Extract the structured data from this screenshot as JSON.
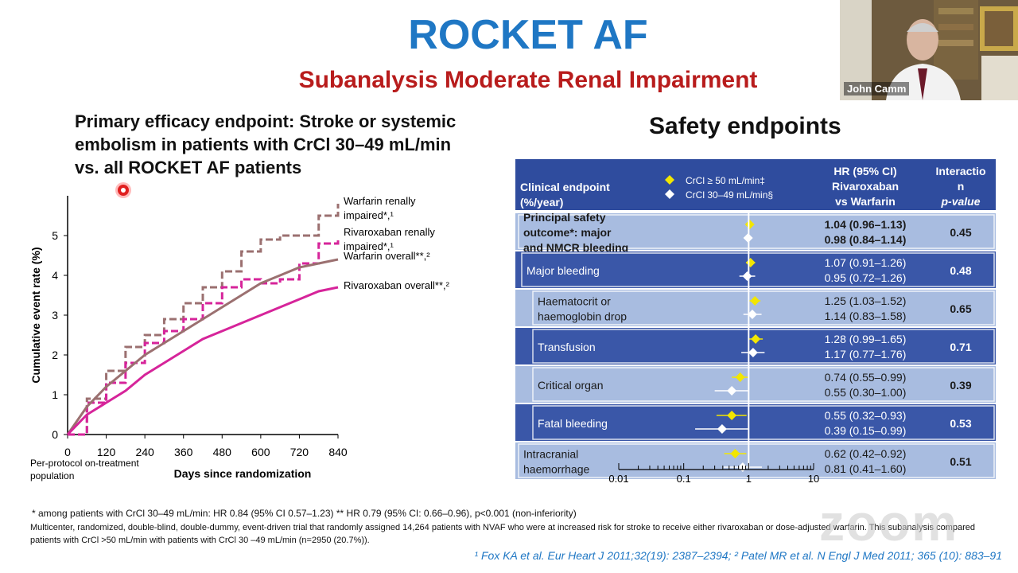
{
  "slide": {
    "title": "ROCKET AF",
    "subtitle": "Subanalysis Moderate Renal Impairment",
    "left_heading": "Primary efficacy endpoint: Stroke or systemic embolism in patients with CrCl 30–49 mL/min vs. all ROCKET AF patients",
    "right_heading": "Safety endpoints",
    "footnote1": "* among patients with CrCl 30–49 mL/min: HR 0.84 (95% CI 0.57–1.23) ** HR 0.79 (95% CI: 0.66–0.96),  p<0.001 (non-inferiority)",
    "footnote2": "Multicenter, randomized, double-blind, double-dummy, event-driven trial that randomly assigned 14,264 patients with NVAF who were at increased risk for stroke to receive either rivaroxaban or dose-adjusted warfarin. This subanalysis compared patients with CrCl >50 mL/min with patients with CrCl 30 –49 mL/min (n=2950 (20.7%)).",
    "references": "¹ Fox KA et al. Eur Heart J 2011;32(19): 2387–2394; ² Patel MR et al. N Engl J Med 2011; 365 (10): 883–91",
    "population_note": "Per-protocol on-treatment population"
  },
  "video_tile": {
    "participant_name": "John Camm",
    "logo_text": "zoom"
  },
  "colors": {
    "title": "#1f77c4",
    "subtitle": "#b81c1c",
    "table_dark": "#3a57a8",
    "table_light": "#a8bce0",
    "table_header": "#2f4c9e",
    "warfarin": "#9b7070",
    "rivaroxaban": "#d6249a",
    "marker_yellow": "#f2e600"
  },
  "chart_data": [
    {
      "type": "line",
      "xlabel": "Days since randomization",
      "ylabel": "Cumulative event rate (%)",
      "xlim": [
        0,
        840
      ],
      "ylim": [
        0,
        6
      ],
      "x_ticks": [
        0,
        120,
        240,
        360,
        480,
        600,
        720,
        840
      ],
      "y_ticks": [
        0,
        1,
        2,
        3,
        4,
        5
      ],
      "series": [
        {
          "name": "Warfarin renally impaired*,¹",
          "style": "dashed",
          "color": "#9b7070",
          "x": [
            0,
            60,
            120,
            180,
            240,
            300,
            360,
            420,
            480,
            540,
            600,
            660,
            720,
            780,
            840
          ],
          "y": [
            0,
            0.9,
            1.6,
            2.2,
            2.5,
            2.9,
            3.3,
            3.7,
            4.1,
            4.6,
            4.9,
            5.0,
            5.0,
            5.5,
            5.8
          ]
        },
        {
          "name": "Rivaroxaban renally impaired*,¹",
          "style": "dashed",
          "color": "#d6249a",
          "x": [
            0,
            60,
            120,
            180,
            240,
            300,
            360,
            420,
            480,
            540,
            600,
            660,
            720,
            780,
            840
          ],
          "y": [
            0,
            0.8,
            1.3,
            1.8,
            2.3,
            2.6,
            2.9,
            3.3,
            3.7,
            3.9,
            3.8,
            3.9,
            4.3,
            4.8,
            4.9
          ]
        },
        {
          "name": "Warfarin overall**,²",
          "style": "solid",
          "color": "#9b7070",
          "x": [
            0,
            60,
            120,
            180,
            240,
            300,
            360,
            420,
            480,
            540,
            600,
            660,
            720,
            780,
            840
          ],
          "y": [
            0,
            0.7,
            1.2,
            1.6,
            2.0,
            2.3,
            2.6,
            2.9,
            3.2,
            3.5,
            3.8,
            4.0,
            4.2,
            4.3,
            4.4
          ]
        },
        {
          "name": "Rivaroxaban overall**,²",
          "style": "solid",
          "color": "#d6249a",
          "x": [
            0,
            60,
            120,
            180,
            240,
            300,
            360,
            420,
            480,
            540,
            600,
            660,
            720,
            780,
            840
          ],
          "y": [
            0,
            0.5,
            0.8,
            1.1,
            1.5,
            1.8,
            2.1,
            2.4,
            2.6,
            2.8,
            3.0,
            3.2,
            3.4,
            3.6,
            3.7
          ]
        }
      ]
    },
    {
      "type": "table",
      "headers": {
        "endpoint": "Clinical endpoint (%/year)",
        "legend_a": "CrCl ≥ 50 mL/min‡",
        "legend_b": "CrCl 30–49 mL/min§",
        "hr": "HR (95% CI) Rivaroxaban vs Warfarin",
        "p": "Interaction p-value"
      },
      "x_axis": {
        "scale": "log",
        "ticks": [
          0.01,
          0.1,
          1,
          10
        ],
        "tick_labels": [
          "0.01",
          "0.1",
          "1",
          "10"
        ]
      },
      "rows": [
        {
          "label": "Principal safety outcome*: major and NMCR bleeding",
          "hr_a": "1.04 (0.96–1.13)",
          "hr_b": "0.98 (0.84–1.14)",
          "p": "0.45",
          "a": [
            1.04,
            0.96,
            1.13
          ],
          "b": [
            0.98,
            0.84,
            1.14
          ]
        },
        {
          "label": "Major bleeding",
          "hr_a": "1.07 (0.91–1.26)",
          "hr_b": "0.95 (0.72–1.26)",
          "p": "0.48",
          "a": [
            1.07,
            0.91,
            1.26
          ],
          "b": [
            0.95,
            0.72,
            1.26
          ]
        },
        {
          "label": "Haematocrit or haemoglobin drop",
          "hr_a": "1.25 (1.03–1.52)",
          "hr_b": "1.14 (0.83–1.58)",
          "p": "0.65",
          "a": [
            1.25,
            1.03,
            1.52
          ],
          "b": [
            1.14,
            0.83,
            1.58
          ]
        },
        {
          "label": "Transfusion",
          "hr_a": "1.28 (0.99–1.65)",
          "hr_b": "1.17 (0.77–1.76)",
          "p": "0.71",
          "a": [
            1.28,
            0.99,
            1.65
          ],
          "b": [
            1.17,
            0.77,
            1.76
          ]
        },
        {
          "label": "Critical organ",
          "hr_a": "0.74 (0.55–0.99)",
          "hr_b": "0.55 (0.30–1.00)",
          "p": "0.39",
          "a": [
            0.74,
            0.55,
            0.99
          ],
          "b": [
            0.55,
            0.3,
            1.0
          ]
        },
        {
          "label": "Fatal bleeding",
          "hr_a": "0.55 (0.32–0.93)",
          "hr_b": "0.39 (0.15–0.99)",
          "p": "0.53",
          "a": [
            0.55,
            0.32,
            0.93
          ],
          "b": [
            0.39,
            0.15,
            0.99
          ]
        },
        {
          "label": "Intracranial haemorrhage",
          "hr_a": "0.62 (0.42–0.92)",
          "hr_b": "0.81 (0.41–1.60)",
          "p": "0.51",
          "a": [
            0.62,
            0.42,
            0.92
          ],
          "b": [
            0.81,
            0.41,
            1.6
          ]
        }
      ]
    }
  ]
}
